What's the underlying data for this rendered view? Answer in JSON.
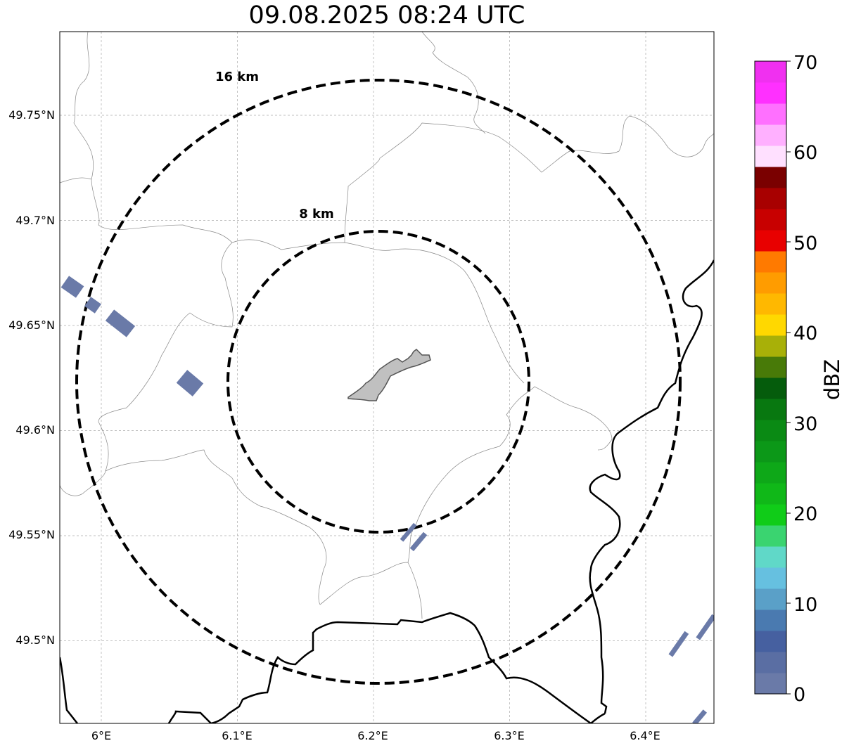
{
  "title": "09.08.2025 08:24 UTC",
  "map": {
    "lon_range": [
      5.97,
      6.45
    ],
    "lat_range": [
      49.46,
      49.79
    ],
    "center": {
      "lon": 6.203,
      "lat": 49.623
    },
    "lon_ticks": [
      {
        "value": 6.0,
        "label": "6°E"
      },
      {
        "value": 6.1,
        "label": "6.1°E"
      },
      {
        "value": 6.2,
        "label": "6.2°E"
      },
      {
        "value": 6.3,
        "label": "6.3°E"
      },
      {
        "value": 6.4,
        "label": "6.4°E"
      }
    ],
    "lat_ticks": [
      {
        "value": 49.75,
        "label": "49.75°N"
      },
      {
        "value": 49.7,
        "label": "49.7°N"
      },
      {
        "value": 49.65,
        "label": "49.65°N"
      },
      {
        "value": 49.6,
        "label": "49.6°N"
      },
      {
        "value": 49.55,
        "label": "49.55°N"
      },
      {
        "value": 49.5,
        "label": "49.5°N"
      }
    ],
    "range_rings": [
      {
        "label": "8 km",
        "radius_km": 8
      },
      {
        "label": "16 km",
        "radius_km": 16
      }
    ],
    "gridlines": true
  },
  "colorbar": {
    "label": "dBZ",
    "min": 0,
    "max": 70,
    "tick_labels": [
      "0",
      "10",
      "20",
      "30",
      "40",
      "50",
      "60",
      "70"
    ],
    "colors": [
      "#6a7aa8",
      "#5a6ea3",
      "#4660a0",
      "#4a7ab0",
      "#5aa0c8",
      "#66c0e0",
      "#60d8c8",
      "#3ad470",
      "#10cc18",
      "#10b818",
      "#0ea818",
      "#0c9818",
      "#0a8a14",
      "#087810",
      "#055c0c",
      "#487a08",
      "#a8b008",
      "#ffd800",
      "#ffb800",
      "#ff9c00",
      "#ff7a00",
      "#e80000",
      "#c80000",
      "#a80000",
      "#7a0000",
      "#ffe0ff",
      "#ffb0ff",
      "#ff70ff",
      "#ff30ff",
      "#f030f0"
    ]
  }
}
